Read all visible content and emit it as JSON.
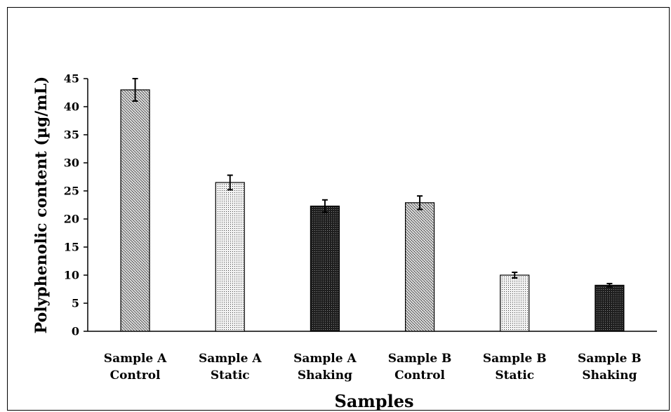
{
  "chart_data": {
    "type": "bar",
    "title": "",
    "xlabel": "Samples",
    "ylabel": "Polyphenolic content (µg/mL)",
    "ylim": [
      0,
      45
    ],
    "yticks": [
      0,
      5,
      10,
      15,
      20,
      25,
      30,
      35,
      40,
      45
    ],
    "categories": [
      [
        "Sample A",
        "Control"
      ],
      [
        "Sample A",
        "Static"
      ],
      [
        "Sample A",
        "Shaking"
      ],
      [
        "Sample B",
        "Control"
      ],
      [
        "Sample B",
        "Static"
      ],
      [
        "Sample B",
        "Shaking"
      ]
    ],
    "values": [
      43,
      26.5,
      22.3,
      22.9,
      10,
      8.2
    ],
    "errors": [
      2,
      1.3,
      1.1,
      1.2,
      0.5,
      0.3
    ],
    "bar_patterns": [
      "crosshatch",
      "dots",
      "dense",
      "crosshatch",
      "dots",
      "dense"
    ],
    "grid": false,
    "legend": "none"
  }
}
